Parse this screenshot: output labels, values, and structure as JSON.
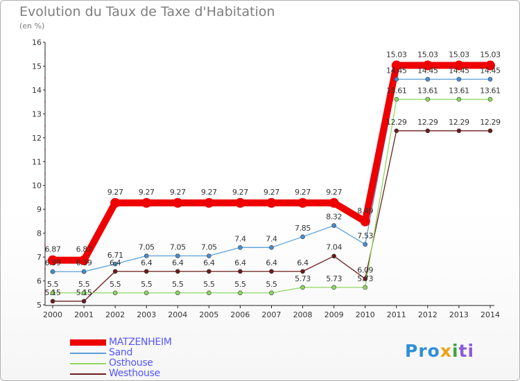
{
  "title": "Evolution du Taux de Taxe d'Habitation",
  "unit_label": "(en %)",
  "logo": {
    "part1": "Pro",
    "part2": "x",
    "part3": "i",
    "part4": "ti"
  },
  "colors": {
    "matzenheim": "#ee0000",
    "sand": "#5aa0d8",
    "osthouse": "#8ed860",
    "westhouse": "#6b1c1c",
    "axis": "#222222",
    "grid_text": "#333333"
  },
  "chart_data": {
    "type": "line",
    "title": "Evolution du Taux de Taxe d'Habitation",
    "ylabel": "(en %)",
    "xlabel": "",
    "ylim": [
      5,
      16
    ],
    "yticks": [
      5,
      6,
      7,
      8,
      9,
      10,
      11,
      12,
      13,
      14,
      15,
      16
    ],
    "categories": [
      "2000",
      "2001",
      "2002",
      "2003",
      "2004",
      "2005",
      "2006",
      "2007",
      "2008",
      "2009",
      "2010",
      "2011",
      "2012",
      "2013",
      "2014"
    ],
    "series": [
      {
        "name": "MATZENHEIM",
        "color": "#ee0000",
        "values": [
          6.87,
          6.87,
          9.27,
          9.27,
          9.27,
          9.27,
          9.27,
          9.27,
          9.27,
          9.27,
          8.49,
          15.03,
          15.03,
          15.03,
          15.03
        ],
        "labels": [
          "6.87",
          "6.87",
          "9.27",
          "9.27",
          "9.27",
          "9.27",
          "9.27",
          "9.27",
          "9.27",
          "9.27",
          "8.49",
          "15.03",
          "15.03",
          "15.03",
          "15.03"
        ]
      },
      {
        "name": "Sand",
        "color": "#5aa0d8",
        "values": [
          6.39,
          6.39,
          6.71,
          7.05,
          7.05,
          7.05,
          7.4,
          7.4,
          7.85,
          8.32,
          7.53,
          14.45,
          14.45,
          14.45,
          14.45
        ],
        "labels": [
          "6.39",
          "6.39",
          "6.71",
          "7.05",
          "7.05",
          "7.05",
          "7.4",
          "7.4",
          "7.85",
          "8.32",
          "7.53",
          "14.45",
          "14.45",
          "14.45",
          "14.45"
        ]
      },
      {
        "name": "Osthouse",
        "color": "#8ed860",
        "values": [
          5.5,
          5.5,
          5.5,
          5.5,
          5.5,
          5.5,
          5.5,
          5.5,
          5.73,
          5.73,
          5.73,
          13.61,
          13.61,
          13.61,
          13.61
        ],
        "labels": [
          "5.5",
          "5.5",
          "5.5",
          "5.5",
          "5.5",
          "5.5",
          "5.5",
          "5.5",
          "5.73",
          "5.73",
          "5.73",
          "13.61",
          "13.61",
          "13.61",
          "13.61"
        ]
      },
      {
        "name": "Westhouse",
        "color": "#6b1c1c",
        "values": [
          5.15,
          5.15,
          6.4,
          6.4,
          6.4,
          6.4,
          6.4,
          6.4,
          6.4,
          7.04,
          6.09,
          12.29,
          12.29,
          12.29,
          12.29
        ],
        "labels": [
          "5.15",
          "5.15",
          "6.4",
          "6.4",
          "6.4",
          "6.4",
          "6.4",
          "6.4",
          "6.4",
          "7.04",
          "6.09",
          "12.29",
          "12.29",
          "12.29",
          "12.29"
        ]
      }
    ],
    "legend_position": "bottom-left"
  }
}
